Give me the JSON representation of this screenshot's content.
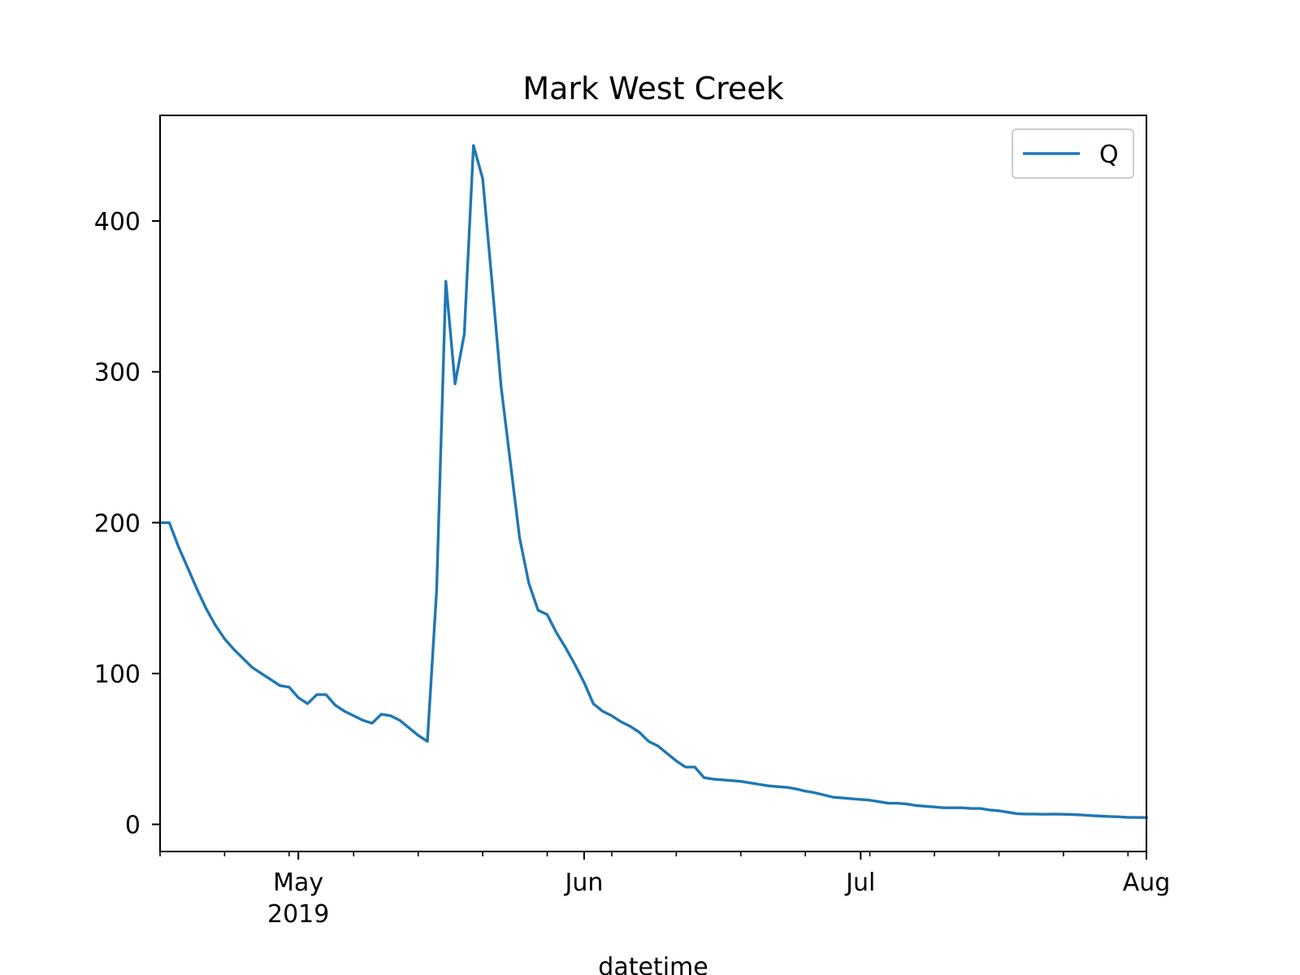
{
  "chart_data": {
    "type": "line",
    "title": "Mark West Creek",
    "xlabel": "datetime",
    "ylabel": "",
    "xlim": [
      "2019-04-16",
      "2019-08-01"
    ],
    "ylim": [
      -18,
      470
    ],
    "grid": false,
    "legend_position": "top-right",
    "colors": {
      "line": "#1f77b4",
      "axes": "#000000",
      "legend_border": "#cccccc"
    },
    "y_ticks": [
      {
        "value": 0,
        "label": "0"
      },
      {
        "value": 100,
        "label": "100"
      },
      {
        "value": 200,
        "label": "200"
      },
      {
        "value": 300,
        "label": "300"
      },
      {
        "value": 400,
        "label": "400"
      }
    ],
    "x_ticks_major": [
      {
        "date": "2019-05-01",
        "label": "May",
        "sublabel": "2019"
      },
      {
        "date": "2019-06-01",
        "label": "Jun",
        "sublabel": ""
      },
      {
        "date": "2019-07-01",
        "label": "Jul",
        "sublabel": ""
      },
      {
        "date": "2019-08-01",
        "label": "Aug",
        "sublabel": ""
      }
    ],
    "x_ticks_minor": [
      "2019-04-16",
      "2019-04-23",
      "2019-04-30",
      "2019-05-07",
      "2019-05-14",
      "2019-05-21",
      "2019-05-28",
      "2019-06-04",
      "2019-06-11",
      "2019-06-18",
      "2019-06-25",
      "2019-07-02",
      "2019-07-09",
      "2019-07-16",
      "2019-07-23",
      "2019-07-30"
    ],
    "series": [
      {
        "name": "Q",
        "points": [
          [
            "2019-04-16",
            200
          ],
          [
            "2019-04-17",
            200
          ],
          [
            "2019-04-18",
            184
          ],
          [
            "2019-04-19",
            170
          ],
          [
            "2019-04-20",
            156
          ],
          [
            "2019-04-21",
            143
          ],
          [
            "2019-04-22",
            132
          ],
          [
            "2019-04-23",
            123
          ],
          [
            "2019-04-24",
            116
          ],
          [
            "2019-04-25",
            110
          ],
          [
            "2019-04-26",
            104
          ],
          [
            "2019-04-27",
            100
          ],
          [
            "2019-04-28",
            96
          ],
          [
            "2019-04-29",
            92
          ],
          [
            "2019-04-30",
            91
          ],
          [
            "2019-05-01",
            84
          ],
          [
            "2019-05-02",
            80
          ],
          [
            "2019-05-03",
            86
          ],
          [
            "2019-05-04",
            86
          ],
          [
            "2019-05-05",
            79
          ],
          [
            "2019-05-06",
            75
          ],
          [
            "2019-05-07",
            72
          ],
          [
            "2019-05-08",
            69
          ],
          [
            "2019-05-09",
            67
          ],
          [
            "2019-05-10",
            73
          ],
          [
            "2019-05-11",
            72
          ],
          [
            "2019-05-12",
            69
          ],
          [
            "2019-05-13",
            64
          ],
          [
            "2019-05-14",
            59
          ],
          [
            "2019-05-15",
            55
          ],
          [
            "2019-05-16",
            155
          ],
          [
            "2019-05-17",
            360
          ],
          [
            "2019-05-18",
            292
          ],
          [
            "2019-05-19",
            325
          ],
          [
            "2019-05-20",
            450
          ],
          [
            "2019-05-21",
            428
          ],
          [
            "2019-05-22",
            360
          ],
          [
            "2019-05-23",
            290
          ],
          [
            "2019-05-24",
            240
          ],
          [
            "2019-05-25",
            190
          ],
          [
            "2019-05-26",
            160
          ],
          [
            "2019-05-27",
            142
          ],
          [
            "2019-05-28",
            139
          ],
          [
            "2019-05-29",
            127
          ],
          [
            "2019-05-30",
            117
          ],
          [
            "2019-05-31",
            106
          ],
          [
            "2019-06-01",
            94
          ],
          [
            "2019-06-02",
            80
          ],
          [
            "2019-06-03",
            75
          ],
          [
            "2019-06-04",
            72
          ],
          [
            "2019-06-05",
            68
          ],
          [
            "2019-06-06",
            65
          ],
          [
            "2019-06-07",
            61
          ],
          [
            "2019-06-08",
            55
          ],
          [
            "2019-06-09",
            52
          ],
          [
            "2019-06-10",
            47
          ],
          [
            "2019-06-11",
            42
          ],
          [
            "2019-06-12",
            38
          ],
          [
            "2019-06-13",
            38
          ],
          [
            "2019-06-14",
            31
          ],
          [
            "2019-06-15",
            30
          ],
          [
            "2019-06-16",
            29.5
          ],
          [
            "2019-06-17",
            29
          ],
          [
            "2019-06-18",
            28.5
          ],
          [
            "2019-06-19",
            27.5
          ],
          [
            "2019-06-20",
            26.5
          ],
          [
            "2019-06-21",
            25.5
          ],
          [
            "2019-06-22",
            25
          ],
          [
            "2019-06-23",
            24.5
          ],
          [
            "2019-06-24",
            23.5
          ],
          [
            "2019-06-25",
            22
          ],
          [
            "2019-06-26",
            21
          ],
          [
            "2019-06-27",
            19.5
          ],
          [
            "2019-06-28",
            18
          ],
          [
            "2019-06-29",
            17.5
          ],
          [
            "2019-06-30",
            17
          ],
          [
            "2019-07-01",
            16.5
          ],
          [
            "2019-07-02",
            16
          ],
          [
            "2019-07-03",
            15
          ],
          [
            "2019-07-04",
            14
          ],
          [
            "2019-07-05",
            14
          ],
          [
            "2019-07-06",
            13.5
          ],
          [
            "2019-07-07",
            12.5
          ],
          [
            "2019-07-08",
            12
          ],
          [
            "2019-07-09",
            11.5
          ],
          [
            "2019-07-10",
            11
          ],
          [
            "2019-07-11",
            11
          ],
          [
            "2019-07-12",
            11
          ],
          [
            "2019-07-13",
            10.5
          ],
          [
            "2019-07-14",
            10.5
          ],
          [
            "2019-07-15",
            9.5
          ],
          [
            "2019-07-16",
            9
          ],
          [
            "2019-07-17",
            8
          ],
          [
            "2019-07-18",
            7
          ],
          [
            "2019-07-19",
            6.8
          ],
          [
            "2019-07-20",
            6.8
          ],
          [
            "2019-07-21",
            6.7
          ],
          [
            "2019-07-22",
            6.8
          ],
          [
            "2019-07-23",
            6.7
          ],
          [
            "2019-07-24",
            6.5
          ],
          [
            "2019-07-25",
            6.2
          ],
          [
            "2019-07-26",
            5.8
          ],
          [
            "2019-07-27",
            5.5
          ],
          [
            "2019-07-28",
            5.2
          ],
          [
            "2019-07-29",
            5
          ],
          [
            "2019-07-30",
            4.6
          ],
          [
            "2019-07-31",
            4.6
          ],
          [
            "2019-08-01",
            4.5
          ]
        ]
      }
    ]
  }
}
